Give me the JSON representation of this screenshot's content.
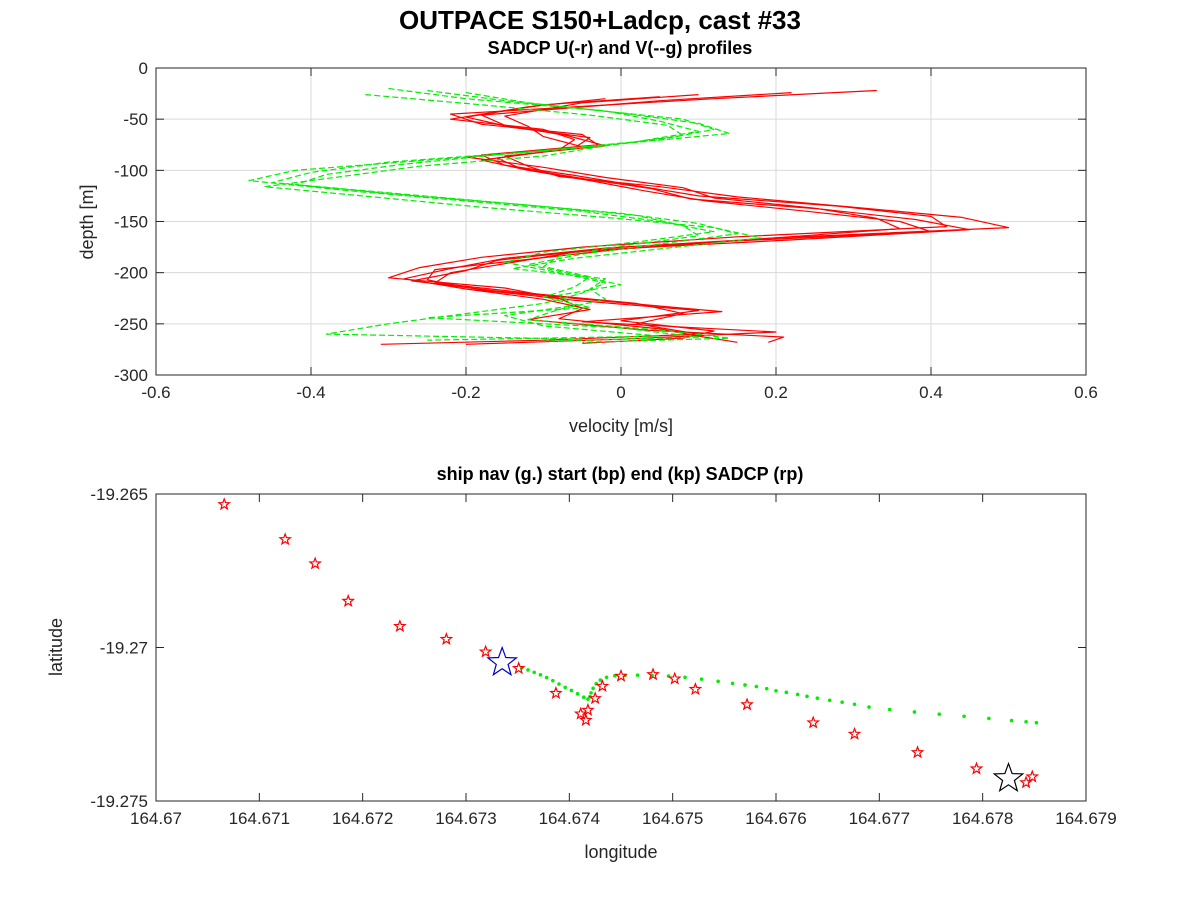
{
  "figure": {
    "title": "OUTPACE S150+Ladcp, cast #33"
  },
  "chart_data": [
    {
      "type": "line",
      "title": "SADCP U(-r) and V(--g) profiles",
      "xlabel": "velocity [m/s]",
      "ylabel": "depth [m]",
      "xlim": [
        -0.6,
        0.6
      ],
      "ylim": [
        -300,
        0
      ],
      "xticks": [
        -0.6,
        -0.4,
        -0.2,
        0,
        0.2,
        0.4,
        0.6
      ],
      "xtick_labels": [
        "-0.6",
        "-0.4",
        "-0.2",
        "0",
        "0.2",
        "0.4",
        "0.6"
      ],
      "yticks": [
        0,
        -50,
        -100,
        -150,
        -200,
        -250,
        -300
      ],
      "ytick_labels": [
        "0",
        "-50",
        "-100",
        "-150",
        "-200",
        "-250",
        "-300"
      ],
      "grid": true,
      "series": [
        {
          "color": "#ff0000",
          "dash": "solid",
          "profiles": [
            {
              "depth": [
                -22,
                -30,
                -45,
                -55,
                -65,
                -75,
                -85,
                -95,
                -105,
                -115,
                -125,
                -135,
                -145,
                -155,
                -165,
                -175,
                -185,
                -195,
                -205,
                -215,
                -225,
                -235,
                -245,
                -255,
                -262,
                -268
              ],
              "u": [
                0.33,
                0.12,
                -0.22,
                -0.18,
                -0.05,
                -0.03,
                -0.18,
                -0.15,
                -0.06,
                0.02,
                0.1,
                0.28,
                0.4,
                0.42,
                0.15,
                -0.05,
                -0.18,
                -0.26,
                -0.3,
                -0.15,
                -0.08,
                -0.05,
                -0.08,
                0.05,
                0.1,
                0.15
              ]
            },
            {
              "depth": [
                -24,
                -32,
                -46,
                -56,
                -66,
                -76,
                -86,
                -96,
                -106,
                -116,
                -126,
                -136,
                -146,
                -156,
                -166,
                -176,
                -186,
                -196,
                -206,
                -216,
                -226,
                -236,
                -246,
                -256,
                -263,
                -268
              ],
              "u": [
                0.22,
                0.05,
                -0.18,
                -0.15,
                -0.07,
                -0.02,
                -0.15,
                -0.12,
                -0.08,
                0.05,
                0.15,
                0.3,
                0.44,
                0.5,
                0.2,
                -0.02,
                -0.15,
                -0.22,
                -0.28,
                -0.2,
                -0.1,
                -0.04,
                -0.12,
                0.03,
                0.21,
                0.19
              ]
            },
            {
              "depth": [
                -26,
                -34,
                -47,
                -57,
                -67,
                -77,
                -87,
                -97,
                -107,
                -117,
                -127,
                -137,
                -147,
                -157,
                -167,
                -177,
                -187,
                -197,
                -207,
                -217,
                -227,
                -237,
                -247,
                -257,
                -264,
                -269
              ],
              "u": [
                0.1,
                -0.05,
                -0.15,
                -0.12,
                -0.1,
                -0.05,
                -0.2,
                -0.1,
                -0.02,
                0.08,
                0.12,
                0.25,
                0.33,
                0.36,
                0.18,
                0.0,
                -0.12,
                -0.24,
                -0.25,
                -0.18,
                -0.06,
                0.1,
                0.0,
                0.12,
                0.08,
                -0.05
              ]
            },
            {
              "depth": [
                -28,
                -36,
                -48,
                -58,
                -68,
                -78,
                -88,
                -98,
                -108,
                -118,
                -128,
                -138,
                -148,
                -158,
                -168,
                -178,
                -188,
                -198,
                -208,
                -218,
                -228,
                -238,
                -248,
                -258,
                -265,
                -270
              ],
              "u": [
                0.05,
                -0.1,
                -0.2,
                -0.14,
                -0.04,
                -0.06,
                -0.16,
                -0.13,
                -0.05,
                0.04,
                0.09,
                0.26,
                0.38,
                0.45,
                0.22,
                -0.04,
                -0.16,
                -0.2,
                -0.27,
                -0.16,
                -0.02,
                0.13,
                -0.05,
                0.2,
                0.0,
                -0.2
              ]
            },
            {
              "depth": [
                -30,
                -38,
                -50,
                -60,
                -70,
                -80,
                -90,
                -100,
                -110,
                -120,
                -130,
                -140,
                -150,
                -160,
                -170,
                -180,
                -190,
                -200,
                -210,
                -220,
                -230,
                -240,
                -250,
                -260,
                -266,
                -270
              ],
              "u": [
                -0.02,
                -0.12,
                -0.22,
                -0.1,
                -0.06,
                -0.08,
                -0.18,
                -0.12,
                -0.04,
                0.03,
                0.11,
                0.24,
                0.36,
                0.4,
                0.12,
                -0.06,
                -0.14,
                -0.22,
                -0.24,
                -0.12,
                0.02,
                0.08,
                0.02,
                0.1,
                -0.1,
                -0.31
              ]
            }
          ]
        },
        {
          "color": "#00ee00",
          "dash": "dashed",
          "profiles": [
            {
              "depth": [
                -20,
                -30,
                -40,
                -50,
                -60,
                -70,
                -80,
                -90,
                -100,
                -110,
                -120,
                -130,
                -140,
                -150,
                -160,
                -170,
                -180,
                -190,
                -200,
                -210,
                -220,
                -230,
                -240,
                -250,
                -260,
                -265
              ],
              "u": [
                -0.3,
                -0.2,
                -0.05,
                0.08,
                0.12,
                0.05,
                -0.08,
                -0.25,
                -0.42,
                -0.48,
                -0.35,
                -0.2,
                -0.05,
                0.05,
                0.12,
                0.02,
                -0.1,
                -0.15,
                -0.08,
                -0.02,
                -0.05,
                -0.1,
                -0.2,
                -0.3,
                -0.38,
                -0.05
              ]
            },
            {
              "depth": [
                -22,
                -32,
                -42,
                -52,
                -62,
                -72,
                -82,
                -92,
                -102,
                -112,
                -122,
                -132,
                -142,
                -152,
                -162,
                -172,
                -182,
                -192,
                -202,
                -212,
                -222,
                -232,
                -242,
                -252,
                -262,
                -266
              ],
              "u": [
                -0.25,
                -0.15,
                -0.02,
                0.05,
                0.1,
                0.02,
                -0.12,
                -0.3,
                -0.4,
                -0.45,
                -0.3,
                -0.15,
                0.0,
                0.1,
                0.15,
                0.05,
                -0.05,
                -0.12,
                -0.06,
                0.0,
                -0.08,
                -0.06,
                -0.15,
                -0.1,
                0.05,
                -0.25
              ]
            },
            {
              "depth": [
                -24,
                -34,
                -44,
                -54,
                -64,
                -74,
                -84,
                -94,
                -104,
                -114,
                -124,
                -134,
                -144,
                -154,
                -164,
                -174,
                -184,
                -194,
                -204,
                -214,
                -224,
                -234,
                -244,
                -254,
                -263,
                -267
              ],
              "u": [
                -0.2,
                -0.12,
                0.0,
                0.1,
                0.14,
                0.0,
                -0.15,
                -0.28,
                -0.38,
                -0.42,
                -0.28,
                -0.12,
                0.02,
                0.08,
                0.1,
                0.0,
                -0.08,
                -0.1,
                -0.04,
                -0.06,
                -0.1,
                -0.04,
                -0.25,
                0.0,
                0.1,
                -0.1
              ]
            },
            {
              "depth": [
                -26,
                -36,
                -46,
                -56,
                -66,
                -76,
                -86,
                -96,
                -106,
                -116,
                -126,
                -136,
                -146,
                -156,
                -166,
                -176,
                -186,
                -196,
                -206,
                -216,
                -226,
                -236,
                -246,
                -256,
                -264,
                -268
              ],
              "u": [
                -0.33,
                -0.18,
                -0.04,
                0.06,
                0.08,
                -0.02,
                -0.1,
                -0.26,
                -0.36,
                -0.46,
                -0.32,
                -0.18,
                -0.02,
                0.12,
                0.18,
                0.06,
                -0.06,
                -0.14,
                -0.02,
                -0.04,
                -0.02,
                -0.08,
                -0.12,
                0.05,
                0.14,
                -0.05
              ]
            }
          ]
        }
      ]
    },
    {
      "type": "scatter",
      "title": "ship nav (g.) start (bp) end (kp) SADCP (rp)",
      "xlabel": "longitude",
      "ylabel": "latitude",
      "xlim": [
        164.67,
        164.679
      ],
      "ylim": [
        -19.275,
        -19.265
      ],
      "xticks": [
        164.67,
        164.671,
        164.672,
        164.673,
        164.674,
        164.675,
        164.676,
        164.677,
        164.678,
        164.679
      ],
      "xtick_labels": [
        "164.67",
        "164.671",
        "164.672",
        "164.673",
        "164.674",
        "164.675",
        "164.676",
        "164.677",
        "164.678",
        "164.679"
      ],
      "yticks": [
        -19.265,
        -19.27,
        -19.275
      ],
      "ytick_labels": [
        "-19.265",
        "-19.27",
        "-19.275"
      ],
      "grid": false,
      "ship_nav": {
        "color": "#00ee00",
        "lon": [
          164.67354,
          164.6736,
          164.67366,
          164.67372,
          164.67378,
          164.67384,
          164.6739,
          164.67396,
          164.67402,
          164.67408,
          164.67414,
          164.67418,
          164.6742,
          164.67421,
          164.67423,
          164.67426,
          164.6743,
          164.67436,
          164.67444,
          164.67454,
          164.67466,
          164.6748,
          164.67496,
          164.67512,
          164.67528,
          164.67544,
          164.67558,
          164.6757,
          164.67581,
          164.67591,
          164.676,
          164.6761,
          164.67621,
          164.6763,
          164.6764,
          164.67652,
          164.67664,
          164.67676,
          164.6769,
          164.6771,
          164.67734,
          164.67758,
          164.67782,
          164.67806,
          164.67828,
          164.67842,
          164.67852
        ],
        "lat": [
          -19.27066,
          -19.27073,
          -19.27081,
          -19.27089,
          -19.27098,
          -19.27108,
          -19.27119,
          -19.2713,
          -19.2714,
          -19.27151,
          -19.27162,
          -19.27168,
          -19.2716,
          -19.27148,
          -19.27133,
          -19.27118,
          -19.27106,
          -19.27097,
          -19.27092,
          -19.27091,
          -19.2709,
          -19.27091,
          -19.27093,
          -19.27097,
          -19.27103,
          -19.2711,
          -19.27117,
          -19.27122,
          -19.27127,
          -19.27134,
          -19.27141,
          -19.27146,
          -19.27153,
          -19.27159,
          -19.27165,
          -19.27172,
          -19.27178,
          -19.27185,
          -19.27194,
          -19.27202,
          -19.2721,
          -19.27217,
          -19.27224,
          -19.27231,
          -19.27238,
          -19.27242,
          -19.27245
        ]
      },
      "sadcp": {
        "color": "#ff0000",
        "lon": [
          164.67066,
          164.67125,
          164.67154,
          164.67186,
          164.67236,
          164.67281,
          164.67319,
          164.67351,
          164.67387,
          164.67411,
          164.67416,
          164.67418,
          164.67425,
          164.67432,
          164.6745,
          164.67481,
          164.67502,
          164.67522,
          164.67572,
          164.67636,
          164.67676,
          164.67737,
          164.67794,
          164.67842,
          164.67848
        ],
        "lat": [
          -19.26534,
          -19.26648,
          -19.26727,
          -19.26849,
          -19.26931,
          -19.26973,
          -19.27014,
          -19.27068,
          -19.27149,
          -19.27216,
          -19.27237,
          -19.27204,
          -19.27166,
          -19.27126,
          -19.27093,
          -19.27088,
          -19.27102,
          -19.27136,
          -19.27186,
          -19.27245,
          -19.27282,
          -19.27342,
          -19.27395,
          -19.2744,
          -19.27421
        ]
      },
      "start": {
        "color": "#0000cc",
        "lon": 164.67335,
        "lat": -19.27049
      },
      "end": {
        "color": "#000000",
        "lon": 164.67825,
        "lat": -19.27427
      }
    }
  ]
}
